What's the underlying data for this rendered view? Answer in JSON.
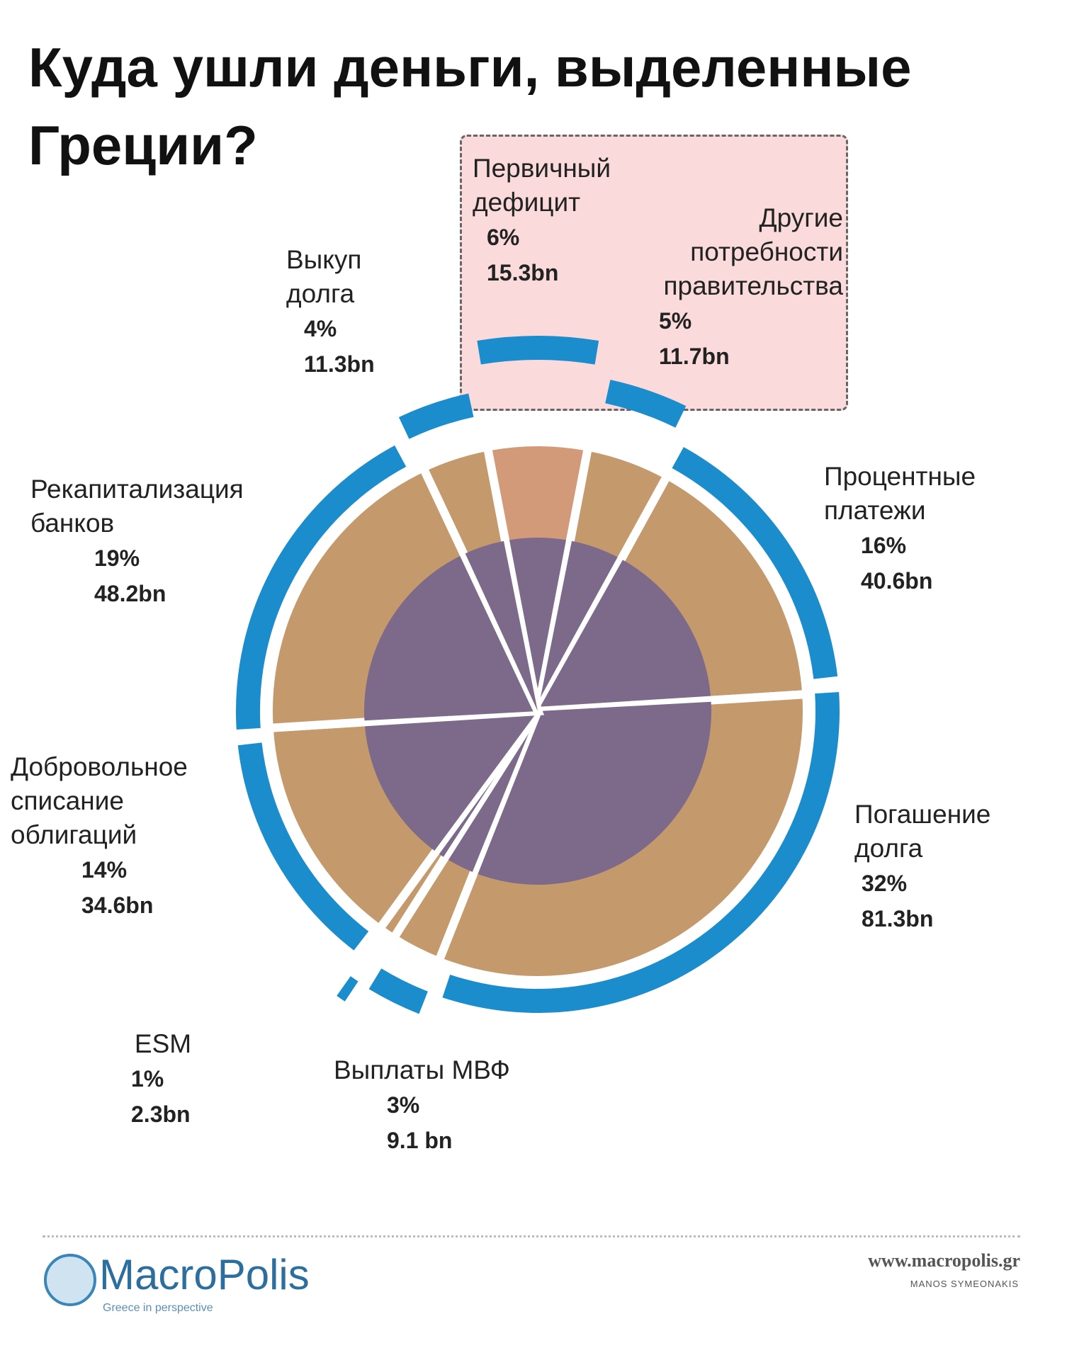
{
  "title": "Куда ушли деньги, выделенные Греции?",
  "chart_data": {
    "type": "pie",
    "categories": [
      "Первичный\nдефицит",
      "Другие\nпотребности\nправительства",
      "Процентные\nплатежи",
      "Погашение\nдолга",
      "Выплаты МВФ",
      "ESM",
      "Добровольное\nсписание\nоблигаций",
      "Рекапитализация\nбанков",
      "Выкуп\nдолга"
    ],
    "values": [
      6,
      5,
      16,
      32,
      3,
      1,
      14,
      19,
      4
    ],
    "value_labels": [
      "6%",
      "5%",
      "16%",
      "32%",
      "3%",
      "1%",
      "14%",
      "19%",
      "4%"
    ],
    "amounts": [
      15.3,
      11.7,
      40.6,
      81.3,
      9.1,
      2.3,
      34.6,
      48.2,
      11.3
    ],
    "amount_labels": [
      "15.3bn",
      "11.7bn",
      "40.6bn",
      "81.3bn",
      "9.1 bn",
      "2.3bn",
      "34.6bn",
      "48.2bn",
      "11.3bn"
    ],
    "color": "#1b8ccc"
  },
  "footer": {
    "brand": "MacroPolis",
    "tagline": "Greece in perspective",
    "url": "www.macropolis.gr",
    "author": "MANOS SYMEONAKIS"
  }
}
